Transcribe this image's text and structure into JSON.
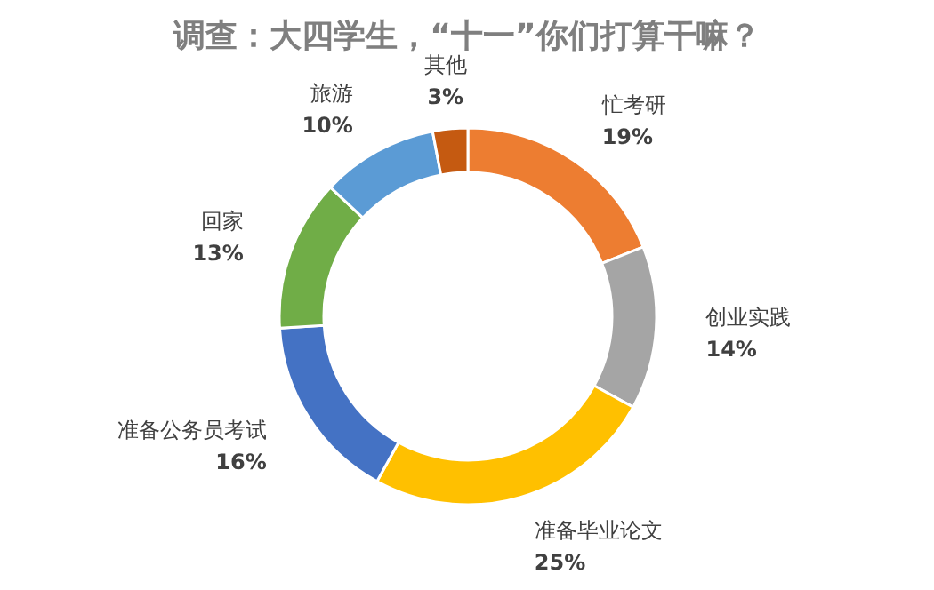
{
  "chart_data": {
    "type": "donut",
    "title": "调查：大四学生，“十一”你们打算干嘛？",
    "categories": [
      "忙考研",
      "创业实践",
      "准备毕业论文",
      "准备公务员考试",
      "回家",
      "旅游",
      "其他"
    ],
    "values": [
      19,
      14,
      25,
      16,
      13,
      10,
      3
    ],
    "value_labels": [
      "19%",
      "14%",
      "25%",
      "16%",
      "13%",
      "10%",
      "3%"
    ],
    "colors": [
      "#ed7d31",
      "#a5a5a5",
      "#ffc000",
      "#4472c4",
      "#70ad47",
      "#5b9bd5",
      "#c55a11"
    ]
  }
}
